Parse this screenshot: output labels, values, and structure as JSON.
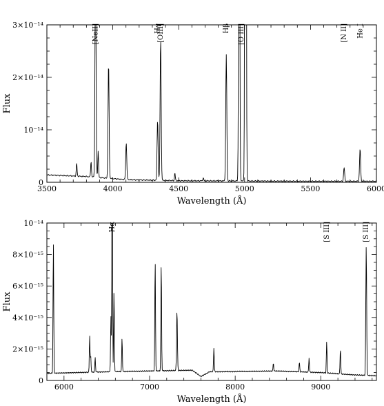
{
  "chart_data": [
    {
      "type": "line",
      "xlabel": "Wavelength (Å)",
      "ylabel": "Flux",
      "xlim": [
        3500,
        6000
      ],
      "ylim": [
        0,
        3e-14
      ],
      "xticks": [
        {
          "value": 3500,
          "label": "3500"
        },
        {
          "value": 4000,
          "label": "4000"
        },
        {
          "value": 4500,
          "label": "4500"
        },
        {
          "value": 5000,
          "label": "5000"
        },
        {
          "value": 5500,
          "label": "5500"
        },
        {
          "value": 6000,
          "label": "6000"
        }
      ],
      "yticks": [
        {
          "value": 0,
          "label": "0"
        },
        {
          "value": 1e-14,
          "label": "10⁻¹⁴"
        },
        {
          "value": 2e-14,
          "label": "2×10⁻¹⁴"
        },
        {
          "value": 3e-14,
          "label": "3×10⁻¹⁴"
        }
      ],
      "continuum": [
        [
          3500,
          1.4e-15
        ],
        [
          3800,
          1.1e-15
        ],
        [
          4100,
          5e-16
        ],
        [
          4500,
          3e-16
        ],
        [
          5000,
          2.5e-16
        ],
        [
          5500,
          2e-16
        ],
        [
          6000,
          2e-16
        ]
      ],
      "lines": [
        {
          "x": 3726,
          "peak": 2.5e-15,
          "width": 3
        },
        {
          "x": 3835,
          "peak": 3e-15,
          "width": 3
        },
        {
          "x": 3869,
          "peak": 4.2e-14,
          "width": 4
        },
        {
          "x": 3889,
          "peak": 5e-15,
          "width": 3
        },
        {
          "x": 3968,
          "peak": 2.2e-14,
          "width": 4
        },
        {
          "x": 4102,
          "peak": 7e-15,
          "width": 4
        },
        {
          "x": 4340,
          "peak": 1.15e-14,
          "width": 4
        },
        {
          "x": 4363,
          "peak": 2.7e-14,
          "width": 4
        },
        {
          "x": 4471,
          "peak": 1.5e-15,
          "width": 3
        },
        {
          "x": 4686,
          "peak": 6e-16,
          "width": 3
        },
        {
          "x": 4861,
          "peak": 2.4e-14,
          "width": 4
        },
        {
          "x": 4959,
          "peak": 8e-14,
          "width": 4
        },
        {
          "x": 5007,
          "peak": 2.2e-13,
          "width": 4
        },
        {
          "x": 5755,
          "peak": 2.6e-15,
          "width": 4
        },
        {
          "x": 5876,
          "peak": 6.2e-15,
          "width": 4
        }
      ],
      "annotations": [
        {
          "x": 3869,
          "label": "[NeII]"
        },
        {
          "x": 4340,
          "label": "Hγ"
        },
        {
          "x": 4363,
          "label": "[OIII]"
        },
        {
          "x": 4861,
          "label": "Hβ"
        },
        {
          "x": 4975,
          "label": "[O III]"
        },
        {
          "x": 5755,
          "label": "[N II]"
        },
        {
          "x": 5876,
          "label": "He I"
        }
      ]
    },
    {
      "type": "line",
      "xlabel": "Wavelength (Å)",
      "ylabel": "Flux",
      "xlim": [
        5800,
        9650
      ],
      "ylim": [
        0,
        1e-14
      ],
      "xticks": [
        {
          "value": 6000,
          "label": "6000"
        },
        {
          "value": 7000,
          "label": "7000"
        },
        {
          "value": 8000,
          "label": "8000"
        },
        {
          "value": 9000,
          "label": "9000"
        }
      ],
      "yticks": [
        {
          "value": 0,
          "label": "0"
        },
        {
          "value": 2e-15,
          "label": "2×10⁻¹⁵"
        },
        {
          "value": 4e-15,
          "label": "4×10⁻¹⁵"
        },
        {
          "value": 6e-15,
          "label": "6×10⁻¹⁵"
        },
        {
          "value": 8e-15,
          "label": "8×10⁻¹⁵"
        },
        {
          "value": 1e-14,
          "label": "10⁻¹⁴"
        }
      ],
      "continuum": [
        [
          5800,
          4.5e-16
        ],
        [
          6500,
          5.5e-16
        ],
        [
          7500,
          6.5e-16
        ],
        [
          7600,
          2.5e-16
        ],
        [
          7700,
          5.5e-16
        ],
        [
          8500,
          6e-16
        ],
        [
          9000,
          5e-16
        ],
        [
          9400,
          3.5e-16
        ],
        [
          9650,
          3e-16
        ]
      ],
      "lines": [
        {
          "x": 5876,
          "peak": 8.4e-15,
          "width": 4
        },
        {
          "x": 6300,
          "peak": 2.3e-15,
          "width": 4
        },
        {
          "x": 6312,
          "peak": 1e-15,
          "width": 4
        },
        {
          "x": 6364,
          "peak": 9e-16,
          "width": 4
        },
        {
          "x": 6548,
          "peak": 3.5e-15,
          "width": 4
        },
        {
          "x": 6563,
          "peak": 1.6e-14,
          "width": 4
        },
        {
          "x": 6584,
          "peak": 5.2e-15,
          "width": 4
        },
        {
          "x": 6678,
          "peak": 2.1e-15,
          "width": 4
        },
        {
          "x": 7065,
          "peak": 7.1e-15,
          "width": 4
        },
        {
          "x": 7136,
          "peak": 6.9e-15,
          "width": 4
        },
        {
          "x": 7320,
          "peak": 3.8e-15,
          "width": 5
        },
        {
          "x": 7751,
          "peak": 1.5e-15,
          "width": 4
        },
        {
          "x": 8446,
          "peak": 5e-16,
          "width": 4
        },
        {
          "x": 8750,
          "peak": 6e-16,
          "width": 4
        },
        {
          "x": 8863,
          "peak": 9e-16,
          "width": 4
        },
        {
          "x": 9069,
          "peak": 2e-15,
          "width": 4
        },
        {
          "x": 9229,
          "peak": 1.6e-15,
          "width": 4
        },
        {
          "x": 9531,
          "peak": 8.2e-15,
          "width": 5
        }
      ],
      "annotations": [
        {
          "x": 6563,
          "label": "Hα"
        },
        {
          "x": 9069,
          "label": "[S III]"
        },
        {
          "x": 9531,
          "label": "[S III]"
        }
      ]
    }
  ]
}
